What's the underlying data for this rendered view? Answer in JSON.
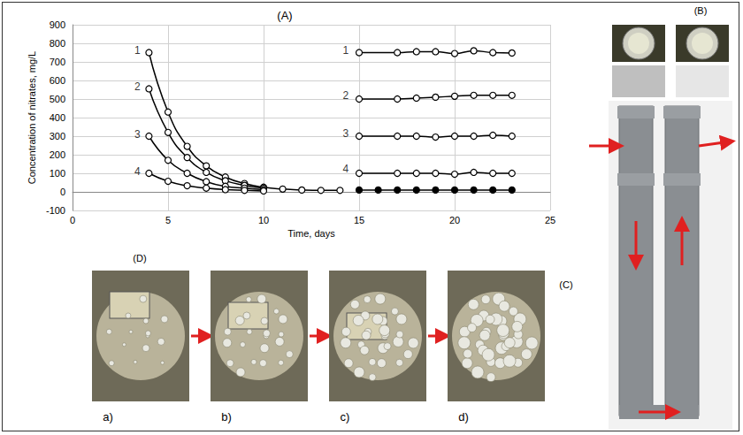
{
  "chart_data": {
    "type": "line",
    "title": "(A)",
    "x_label": "Time, days",
    "y_label": "Concentration of nitrates, mg/L",
    "xlim": [
      0,
      25
    ],
    "xticks": [
      0,
      5,
      10,
      15,
      20,
      25
    ],
    "ylim": [
      -100,
      900
    ],
    "yticks": [
      -100,
      0,
      100,
      200,
      300,
      400,
      500,
      600,
      700,
      800,
      900
    ],
    "grid": true,
    "color": "#000000",
    "line_style": "smooth",
    "series": [
      {
        "marker": "circle_open",
        "x": [
          4,
          5,
          6,
          7,
          8,
          9,
          10,
          11,
          12,
          13,
          14
        ],
        "values": [
          750,
          430,
          245,
          140,
          80,
          45,
          25,
          15,
          10,
          8,
          8
        ]
      },
      {
        "marker": "circle_open",
        "x": [
          4,
          5,
          6,
          7,
          8,
          9,
          10
        ],
        "values": [
          555,
          320,
          185,
          105,
          60,
          35,
          20
        ]
      },
      {
        "marker": "circle_open",
        "x": [
          4,
          5,
          6,
          7,
          8,
          9,
          10
        ],
        "values": [
          300,
          170,
          100,
          55,
          30,
          20,
          12
        ]
      },
      {
        "marker": "circle_open",
        "x": [
          4,
          5,
          6,
          7,
          8,
          9,
          10
        ],
        "values": [
          100,
          57,
          33,
          20,
          12,
          8,
          5
        ]
      },
      {
        "marker": "circle_open",
        "x": [
          15,
          17,
          18,
          19,
          20,
          21,
          22,
          23
        ],
        "values": [
          750,
          750,
          755,
          755,
          745,
          760,
          750,
          748
        ]
      },
      {
        "marker": "circle_open",
        "x": [
          15,
          17,
          18,
          19,
          20,
          21,
          22,
          23
        ],
        "values": [
          500,
          500,
          505,
          510,
          515,
          520,
          520,
          520
        ]
      },
      {
        "marker": "circle_open",
        "x": [
          15,
          17,
          18,
          19,
          20,
          21,
          22,
          23
        ],
        "values": [
          300,
          300,
          300,
          295,
          300,
          300,
          305,
          300
        ]
      },
      {
        "marker": "circle_open",
        "x": [
          15,
          17,
          18,
          19,
          20,
          21,
          22,
          23
        ],
        "values": [
          100,
          100,
          100,
          100,
          95,
          105,
          100,
          100
        ]
      },
      {
        "marker": "circle_filled",
        "x": [
          15,
          16,
          17,
          18,
          19,
          20,
          21,
          22,
          23
        ],
        "values": [
          10,
          10,
          10,
          10,
          10,
          10,
          10,
          10,
          10
        ]
      }
    ],
    "annotations": [
      {
        "text": "1",
        "x": 3.4,
        "y": 760
      },
      {
        "text": "2",
        "x": 3.4,
        "y": 565
      },
      {
        "text": "3",
        "x": 3.4,
        "y": 310
      },
      {
        "text": "4",
        "x": 3.4,
        "y": 110
      },
      {
        "text": "1",
        "x": 14.3,
        "y": 760
      },
      {
        "text": "2",
        "x": 14.3,
        "y": 520
      },
      {
        "text": "3",
        "x": 14.3,
        "y": 315
      },
      {
        "text": "4",
        "x": 14.3,
        "y": 125
      }
    ]
  },
  "panels": {
    "B": {
      "label": "(B)"
    },
    "C": {
      "label": "(C)"
    },
    "D": {
      "label": "(D)",
      "steps": [
        "a)",
        "b)",
        "c)",
        "d)"
      ]
    }
  }
}
